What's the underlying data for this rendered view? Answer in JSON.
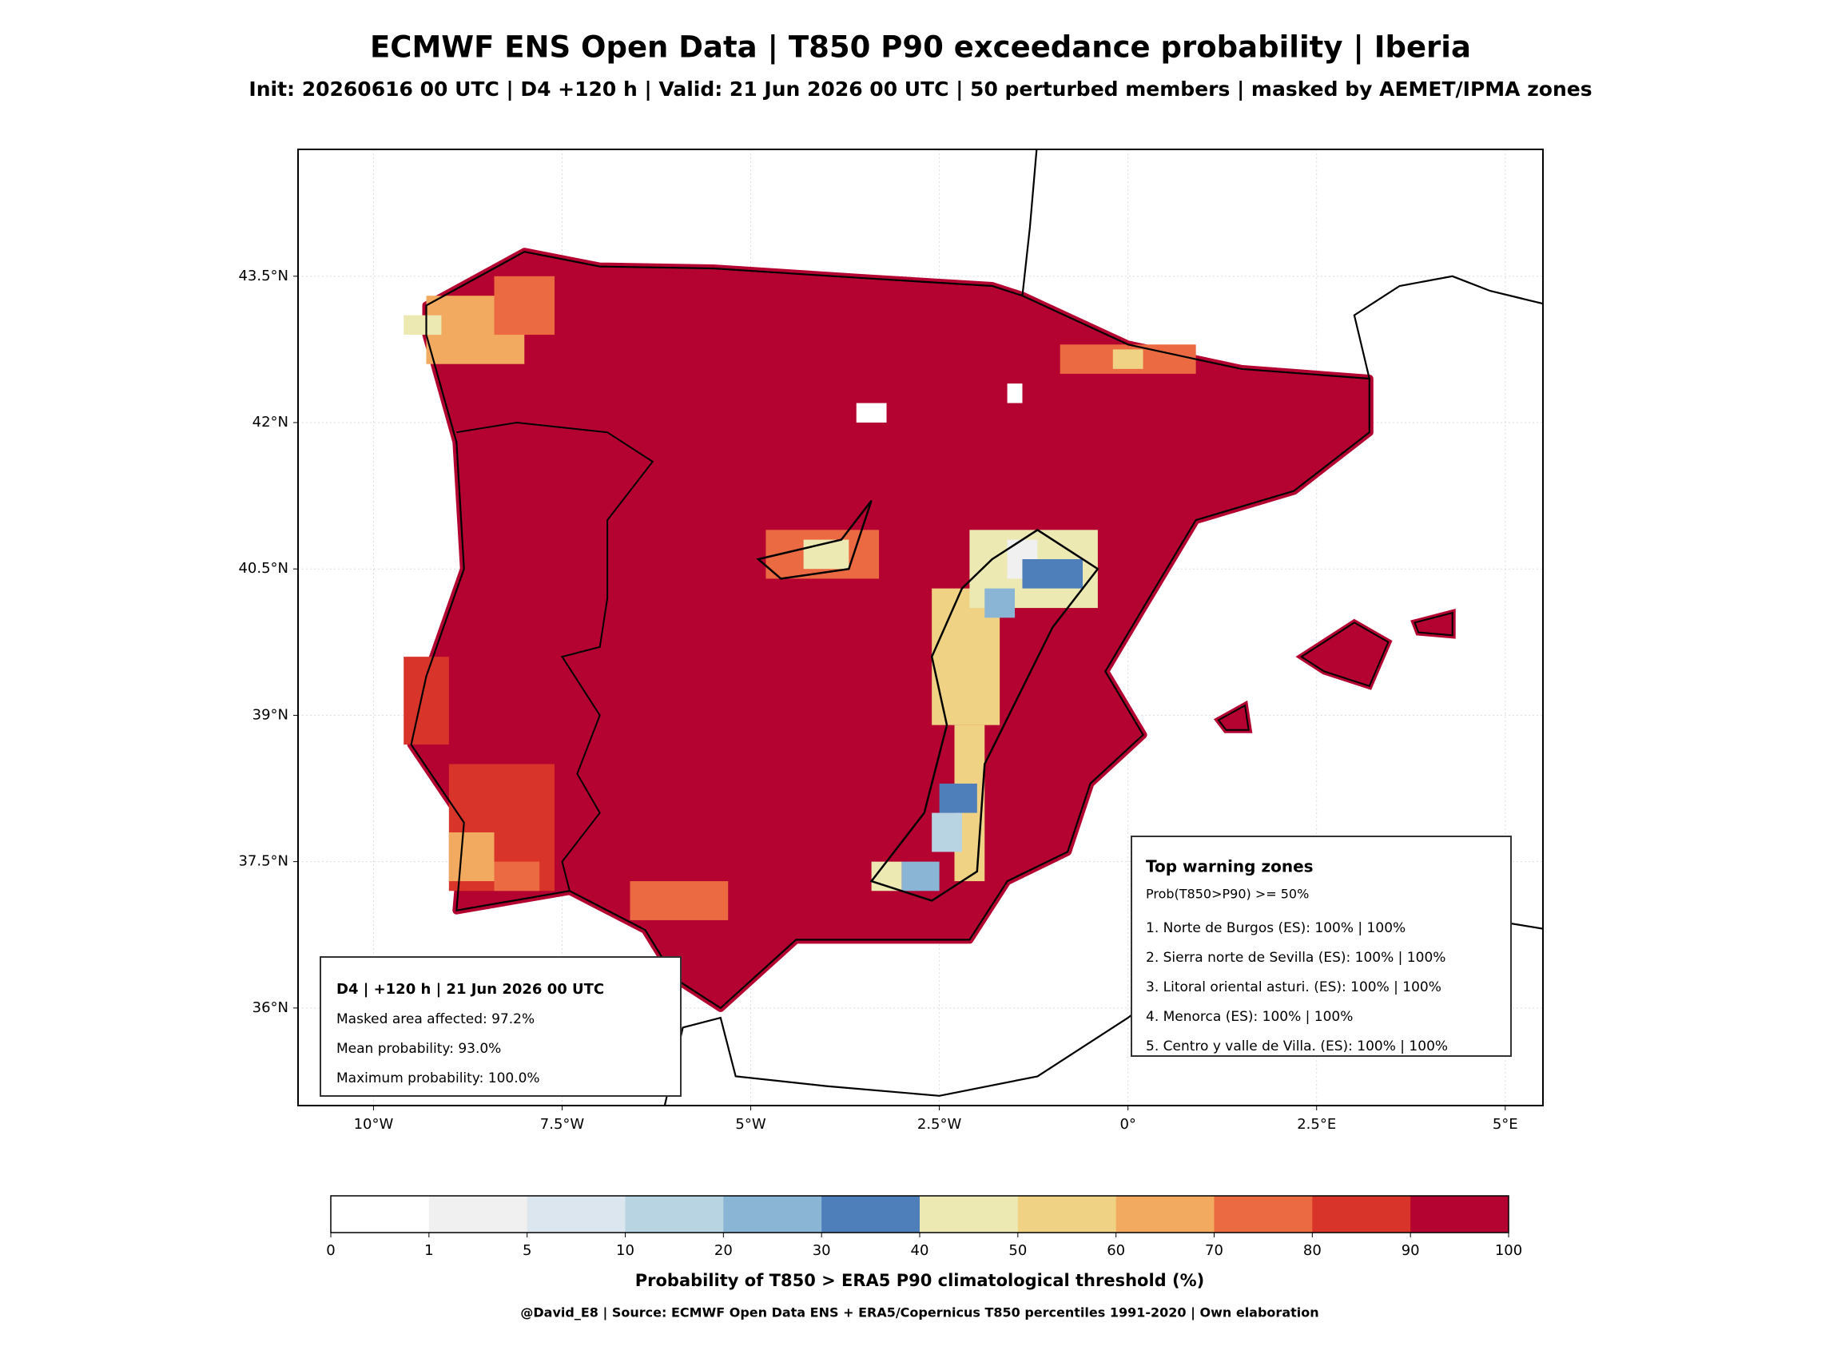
{
  "title": "ECMWF ENS Open Data | T850 P90 exceedance probability | Iberia",
  "subtitle": "Init: 20260616 00 UTC | D4 +120 h | Valid: 21 Jun 2026 00 UTC | 50 perturbed members | masked by AEMET/IPMA zones",
  "map": {
    "xlim": [
      -11,
      5.5
    ],
    "ylim": [
      35,
      44.8
    ],
    "xticks": [
      {
        "value": -10,
        "label": "10°W"
      },
      {
        "value": -7.5,
        "label": "7.5°W"
      },
      {
        "value": -5,
        "label": "5°W"
      },
      {
        "value": -2.5,
        "label": "2.5°W"
      },
      {
        "value": 0,
        "label": "0°"
      },
      {
        "value": 2.5,
        "label": "2.5°E"
      },
      {
        "value": 5,
        "label": "5°E"
      }
    ],
    "yticks": [
      {
        "value": 36,
        "label": "36°N"
      },
      {
        "value": 37.5,
        "label": "37.5°N"
      },
      {
        "value": 39,
        "label": "39°N"
      },
      {
        "value": 40.5,
        "label": "40.5°N"
      },
      {
        "value": 42,
        "label": "42°N"
      },
      {
        "value": 43.5,
        "label": "43.5°N"
      }
    ],
    "grid": true
  },
  "summary_box": {
    "title": "D4 | +120 h | 21 Jun 2026 00 UTC",
    "lines": [
      "Masked area affected: 97.2%",
      "Mean probability: 93.0%",
      "Maximum probability: 100.0%"
    ]
  },
  "warning_box": {
    "title": "Top warning zones",
    "subtitle": "Prob(T850>P90) >= 50%",
    "lines": [
      "1. Norte de Burgos (ES): 100% | 100%",
      "2. Sierra norte de Sevilla (ES): 100% | 100%",
      "3. Litoral oriental asturi. (ES): 100% | 100%",
      "4. Menorca (ES): 100% | 100%",
      "5. Centro y valle de Villa. (ES): 100% | 100%"
    ]
  },
  "colorbar": {
    "ticks": [
      0,
      1,
      5,
      10,
      20,
      30,
      40,
      50,
      60,
      70,
      80,
      90,
      100
    ],
    "colors": [
      "#ffffff",
      "#f0f0f0",
      "#dbe6ee",
      "#b8d4e3",
      "#8ab5d4",
      "#4f7fbb",
      "#ece9b2",
      "#efd284",
      "#f1aa5f",
      "#eb6a42",
      "#d9342a",
      "#b40330"
    ],
    "label": "Probability of T850 > ERA5 P90 climatological threshold (%)"
  },
  "footer": "@David_E8 | Source: ECMWF Open Data ENS + ERA5/Copernicus T850 percentiles 1991-2020 | Own elaboration"
}
